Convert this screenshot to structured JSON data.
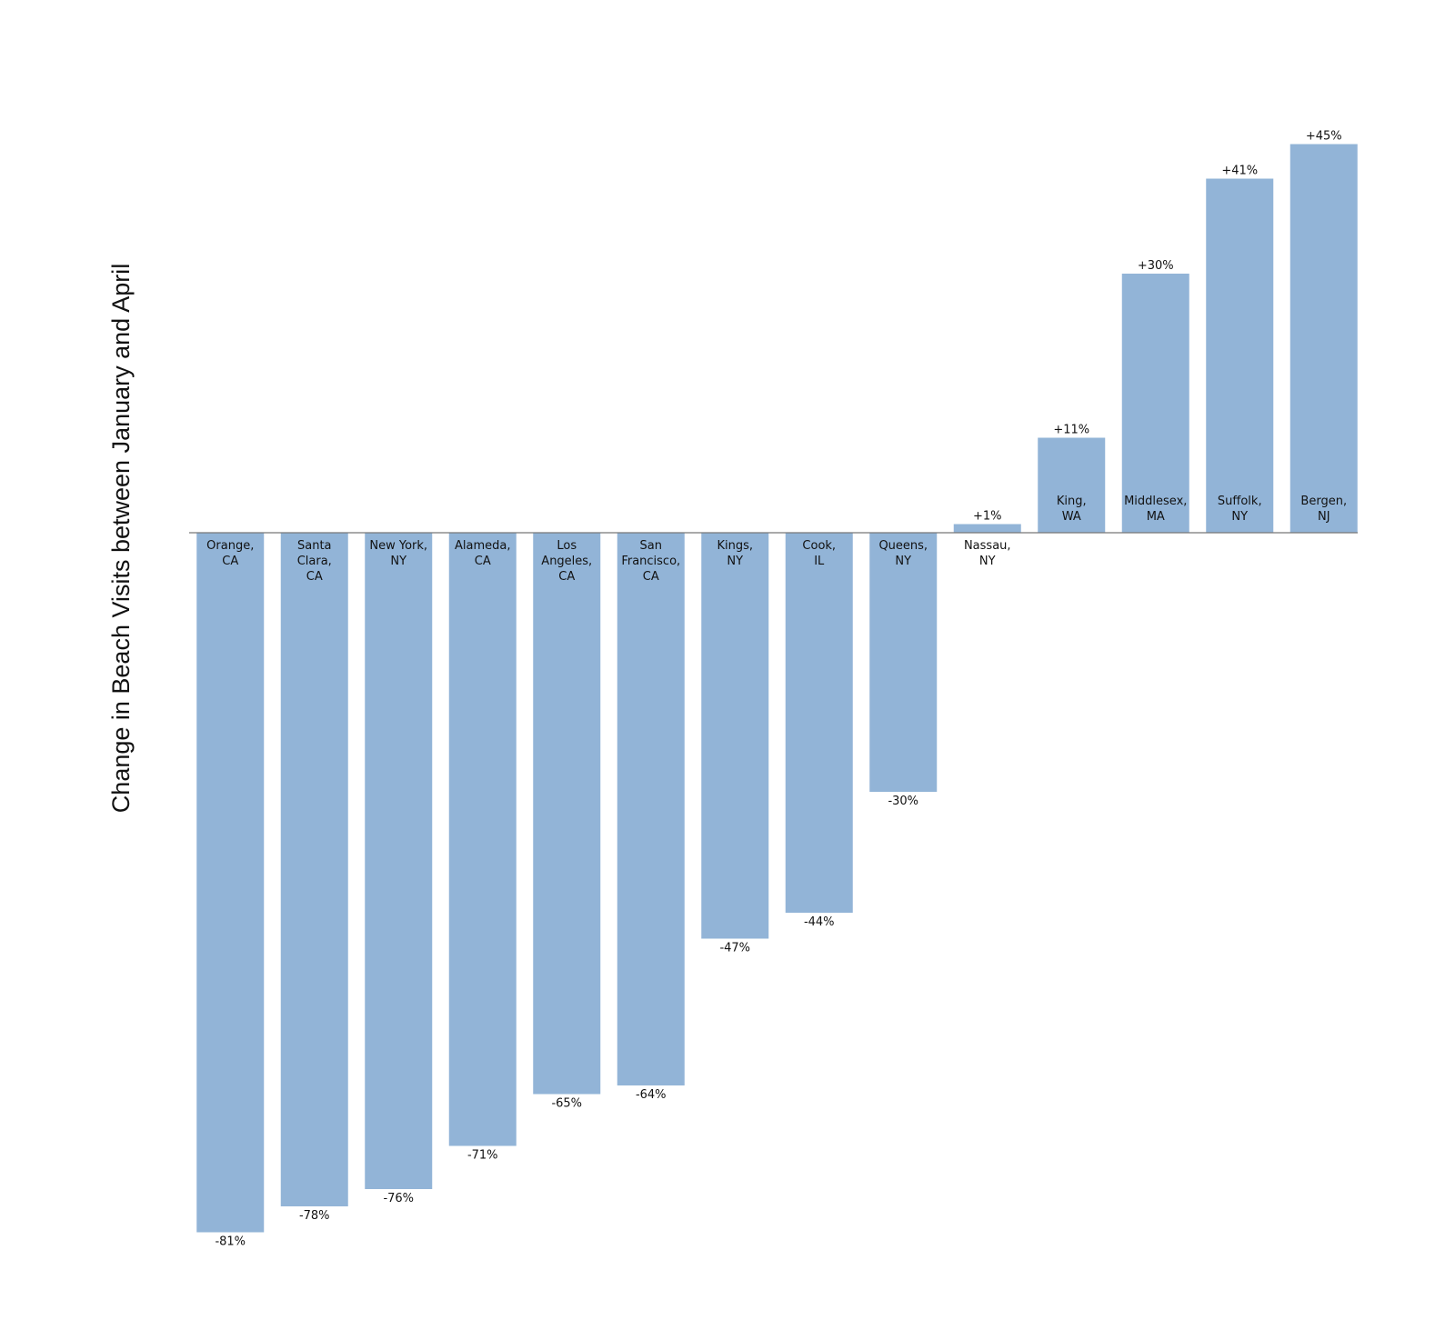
{
  "chart_data": {
    "type": "bar",
    "ylabel": "Change in Beach Visits between January and April",
    "categories": [
      "Orange,\nCA",
      "Santa\nClara,\nCA",
      "New York,\nNY",
      "Alameda,\nCA",
      "Los\nAngeles,\nCA",
      "San\nFrancisco,\nCA",
      "Kings,\nNY",
      "Cook,\nIL",
      "Queens,\nNY",
      "Nassau,\nNY",
      "King,\nWA",
      "Middlesex,\nMA",
      "Suffolk,\nNY",
      "Bergen,\nNJ"
    ],
    "values": [
      -81,
      -78,
      -76,
      -71,
      -65,
      -64,
      -47,
      -44,
      -30,
      1,
      11,
      30,
      41,
      45
    ],
    "value_labels": [
      "-81%",
      "-78%",
      "-76%",
      "-71%",
      "-65%",
      "-64%",
      "-47%",
      "-44%",
      "-30%",
      "+1%",
      "+11%",
      "+30%",
      "+41%",
      "+45%"
    ],
    "color": "#92b4d7",
    "ylim": [
      -84,
      48
    ]
  }
}
